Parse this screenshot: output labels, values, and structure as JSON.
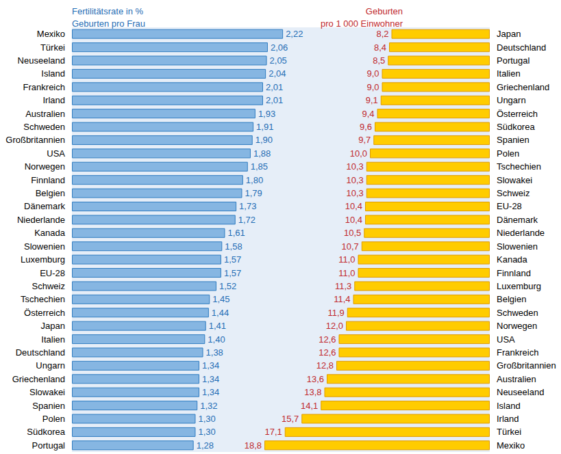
{
  "chart_data": [
    {
      "type": "bar",
      "orientation": "horizontal",
      "title": "Fertilitätsrate in %\nGeburten pro Frau",
      "categories": [
        "Mexiko",
        "Türkei",
        "Neuseeland",
        "Island",
        "Frankreich",
        "Irland",
        "Australien",
        "Schweden",
        "Großbritannien",
        "USA",
        "Norwegen",
        "Finnland",
        "Belgien",
        "Dänemark",
        "Niederlande",
        "Kanada",
        "Slowenien",
        "Luxemburg",
        "EU-28",
        "Schweiz",
        "Tschechien",
        "Österreich",
        "Japan",
        "Italien",
        "Deutschland",
        "Ungarn",
        "Griechenland",
        "Slowakei",
        "Spanien",
        "Polen",
        "Südkorea",
        "Portugal"
      ],
      "values": [
        2.22,
        2.06,
        2.05,
        2.04,
        2.01,
        2.01,
        1.93,
        1.91,
        1.9,
        1.88,
        1.85,
        1.8,
        1.79,
        1.73,
        1.72,
        1.61,
        1.58,
        1.57,
        1.57,
        1.52,
        1.45,
        1.44,
        1.41,
        1.4,
        1.38,
        1.34,
        1.34,
        1.34,
        1.32,
        1.3,
        1.3,
        1.28
      ],
      "value_labels": [
        "2,22",
        "2,06",
        "2,05",
        "2,04",
        "2,01",
        "2,01",
        "1,93",
        "1,91",
        "1,90",
        "1,88",
        "1,85",
        "1,80",
        "1,79",
        "1,73",
        "1,72",
        "1,61",
        "1,58",
        "1,57",
        "1,57",
        "1,52",
        "1,45",
        "1,44",
        "1,41",
        "1,40",
        "1,38",
        "1,34",
        "1,34",
        "1,34",
        "1,32",
        "1,30",
        "1,30",
        "1,28"
      ],
      "color": "#86b6e2",
      "xlim": [
        0,
        2.5
      ],
      "data_labels": true,
      "tick_labels": "y",
      "grid": false
    },
    {
      "type": "bar",
      "orientation": "horizontal",
      "title": "Geburten\npro 1 000 Einwohner",
      "categories": [
        "Japan",
        "Deutschland",
        "Portugal",
        "Italien",
        "Griechenland",
        "Ungarn",
        "Österreich",
        "Südkorea",
        "Spanien",
        "Polen",
        "Tschechien",
        "Slowakei",
        "Schweiz",
        "EU-28",
        "Dänemark",
        "Niederlande",
        "Slowenien",
        "Kanada",
        "Finnland",
        "Luxemburg",
        "Belgien",
        "Schweden",
        "Norwegen",
        "USA",
        "Frankreich",
        "Großbritannien",
        "Australien",
        "Neuseeland",
        "Island",
        "Irland",
        "Türkei",
        "Mexiko"
      ],
      "values": [
        8.2,
        8.4,
        8.5,
        9.0,
        9.0,
        9.1,
        9.4,
        9.6,
        9.7,
        10.0,
        10.3,
        10.3,
        10.3,
        10.4,
        10.4,
        10.5,
        10.7,
        11.0,
        11.0,
        11.3,
        11.4,
        11.9,
        12.0,
        12.6,
        12.6,
        12.8,
        13.6,
        13.8,
        14.1,
        15.7,
        17.1,
        18.8
      ],
      "value_labels": [
        "8,2",
        "8,4",
        "8,5",
        "9,0",
        "9,0",
        "9,1",
        "9,4",
        "9,6",
        "9,7",
        "10,0",
        "10,3",
        "10,3",
        "10,3",
        "10,4",
        "10,4",
        "10,5",
        "10,7",
        "11,0",
        "11,0",
        "11,3",
        "11,4",
        "11,9",
        "12,0",
        "12,6",
        "12,6",
        "12,8",
        "13,6",
        "13,8",
        "14,1",
        "15,7",
        "17,1",
        "18,8"
      ],
      "color": "#ffcc00",
      "xlim": [
        0,
        20
      ],
      "data_labels": true,
      "tick_labels": "y",
      "grid": false
    }
  ]
}
